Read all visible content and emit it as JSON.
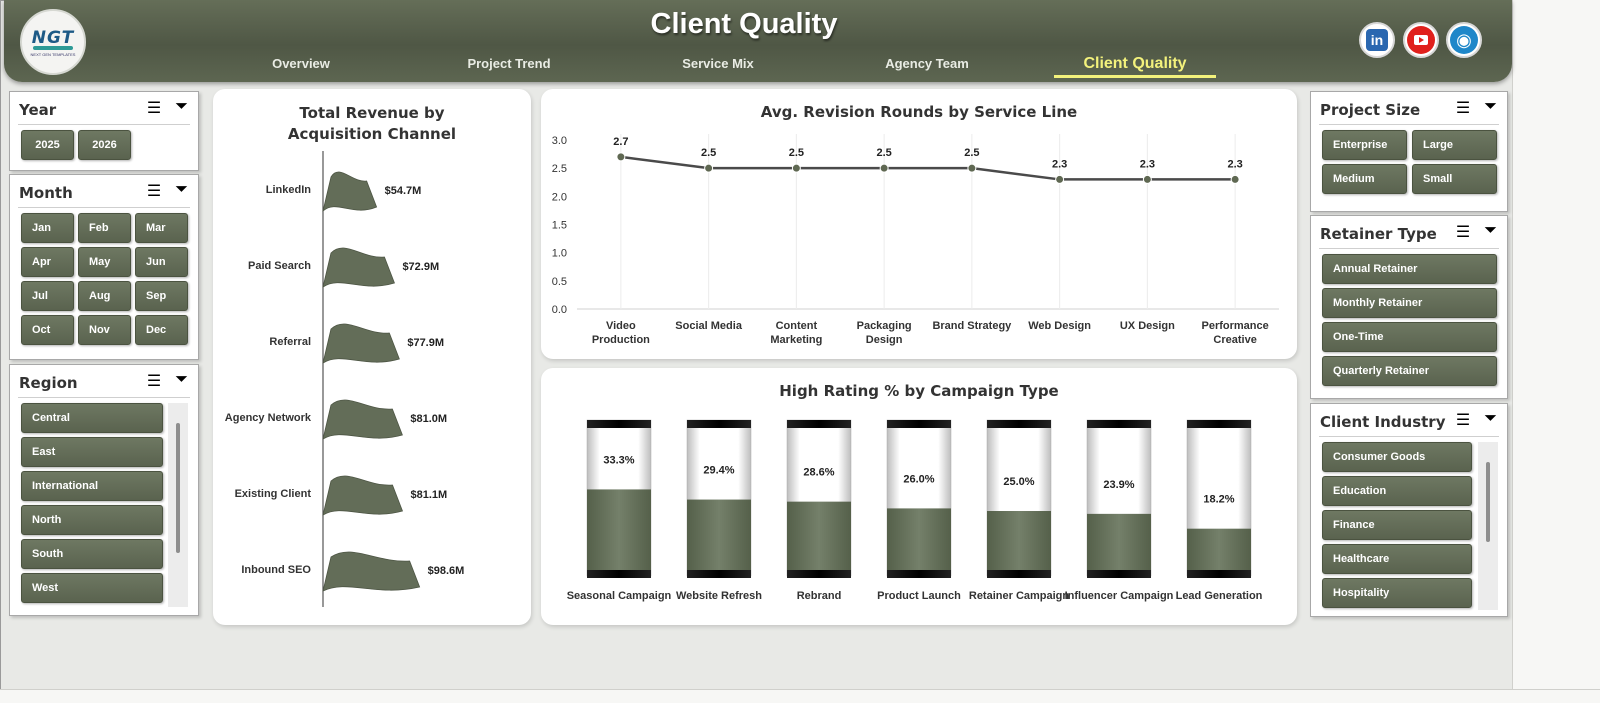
{
  "header": {
    "title": "Client Quality",
    "logo": {
      "text": "NGT",
      "subtext": "NEXT GEN TEMPLATES"
    },
    "nav": [
      "Overview",
      "Project Trend",
      "Service Mix",
      "Agency Team",
      "Client Quality"
    ],
    "active_nav": "Client Quality",
    "social": [
      "linkedin-icon",
      "youtube-icon",
      "website-globe-icon"
    ]
  },
  "slicers": {
    "year": {
      "title": "Year",
      "items": [
        "2025",
        "2026"
      ]
    },
    "month": {
      "title": "Month",
      "items": [
        "Jan",
        "Feb",
        "Mar",
        "Apr",
        "May",
        "Jun",
        "Jul",
        "Aug",
        "Sep",
        "Oct",
        "Nov",
        "Dec"
      ]
    },
    "region": {
      "title": "Region",
      "items": [
        "Central",
        "East",
        "International",
        "North",
        "South",
        "West"
      ]
    },
    "project_size": {
      "title": "Project Size",
      "items": [
        "Enterprise",
        "Large",
        "Medium",
        "Small"
      ]
    },
    "retainer_type": {
      "title": "Retainer Type",
      "items": [
        "Annual Retainer",
        "Monthly Retainer",
        "One-Time",
        "Quarterly Retainer"
      ]
    },
    "client_industry": {
      "title": "Client Industry",
      "items": [
        "Consumer Goods",
        "Education",
        "Finance",
        "Healthcare",
        "Hospitality"
      ]
    }
  },
  "colors": {
    "accent": "#5f6852",
    "header_dark": "#4f5745",
    "active_tab": "#f3f27c",
    "line": "#4a4a4a"
  },
  "chart_data": [
    {
      "type": "bar",
      "title": "Total Revenue  by Acquisition Channel",
      "categories": [
        "LinkedIn",
        "Paid Search",
        "Referral",
        "Agency Network",
        "Existing Client",
        "Inbound SEO"
      ],
      "values": [
        54.7,
        72.9,
        77.9,
        81.0,
        81.1,
        98.6
      ],
      "labels": [
        "$54.7M",
        "$72.9M",
        "$77.9M",
        "$81.0M",
        "$81.1M",
        "$98.6M"
      ]
    },
    {
      "type": "line",
      "title": "Avg. Revision Rounds  by Service Line",
      "categories": [
        "Video Production",
        "Social Media",
        "Content Marketing",
        "Packaging Design",
        "Brand Strategy",
        "Web Design",
        "UX Design",
        "Performance Creative"
      ],
      "values": [
        2.7,
        2.5,
        2.5,
        2.5,
        2.5,
        2.3,
        2.3,
        2.3
      ],
      "labels": [
        "2.7",
        "2.5",
        "2.5",
        "2.5",
        "2.5",
        "2.3",
        "2.3",
        "2.3"
      ],
      "ylim": [
        0,
        3
      ],
      "yticks": [
        "3.0",
        "2.5",
        "2.0",
        "1.5",
        "1.0",
        "0.5",
        "0.0"
      ],
      "grid": true
    },
    {
      "type": "bar",
      "title": "High Rating % by Campaign Type",
      "categories": [
        "Seasonal Campaign",
        "Website Refresh",
        "Rebrand",
        "Product Launch",
        "Retainer Campaign",
        "Influencer Campaign",
        "Lead Generation"
      ],
      "values": [
        33.3,
        29.4,
        28.6,
        26.0,
        25.0,
        23.9,
        18.2
      ],
      "labels": [
        "33.3%",
        "29.4%",
        "28.6%",
        "26.0%",
        "25.0%",
        "23.9%",
        "18.2%"
      ]
    }
  ]
}
